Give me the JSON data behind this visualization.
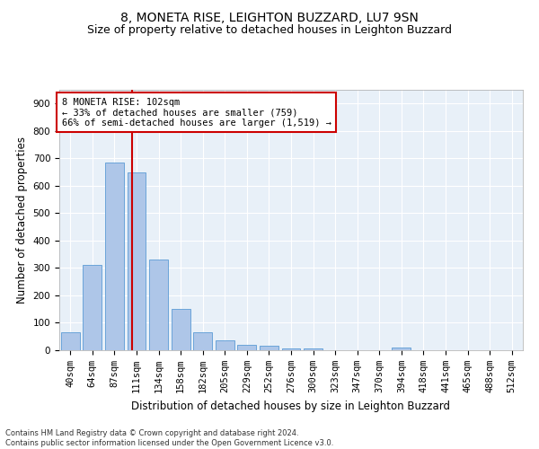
{
  "title1": "8, MONETA RISE, LEIGHTON BUZZARD, LU7 9SN",
  "title2": "Size of property relative to detached houses in Leighton Buzzard",
  "xlabel": "Distribution of detached houses by size in Leighton Buzzard",
  "ylabel": "Number of detached properties",
  "footnote": "Contains HM Land Registry data © Crown copyright and database right 2024.\nContains public sector information licensed under the Open Government Licence v3.0.",
  "bar_labels": [
    "40sqm",
    "64sqm",
    "87sqm",
    "111sqm",
    "134sqm",
    "158sqm",
    "182sqm",
    "205sqm",
    "229sqm",
    "252sqm",
    "276sqm",
    "300sqm",
    "323sqm",
    "347sqm",
    "370sqm",
    "394sqm",
    "418sqm",
    "441sqm",
    "465sqm",
    "488sqm",
    "512sqm"
  ],
  "bar_values": [
    65,
    310,
    685,
    650,
    330,
    150,
    65,
    35,
    20,
    15,
    8,
    5,
    0,
    0,
    0,
    10,
    0,
    0,
    0,
    0,
    0
  ],
  "bar_color": "#aec6e8",
  "bar_edge_color": "#5b9bd5",
  "bg_color": "#e8f0f8",
  "grid_color": "#ffffff",
  "red_line_x": 2.78,
  "annotation_text": "8 MONETA RISE: 102sqm\n← 33% of detached houses are smaller (759)\n66% of semi-detached houses are larger (1,519) →",
  "annotation_box_color": "#ffffff",
  "annotation_border_color": "#cc0000",
  "ylim": [
    0,
    950
  ],
  "yticks": [
    0,
    100,
    200,
    300,
    400,
    500,
    600,
    700,
    800,
    900
  ],
  "title1_fontsize": 10,
  "title2_fontsize": 9,
  "xlabel_fontsize": 8.5,
  "ylabel_fontsize": 8.5,
  "annot_fontsize": 7.5,
  "tick_fontsize": 7.5,
  "ytick_fontsize": 7.5,
  "footnote_fontsize": 6
}
